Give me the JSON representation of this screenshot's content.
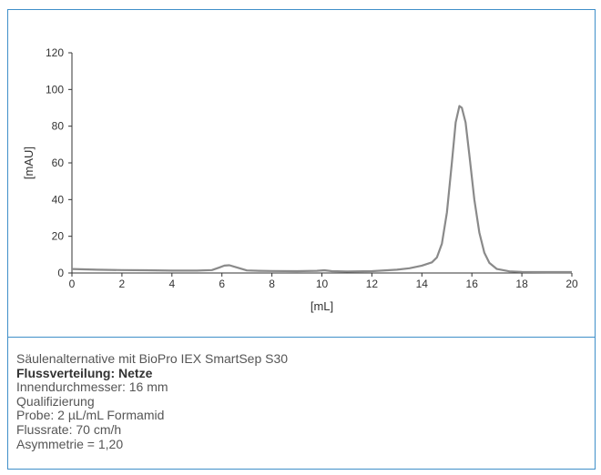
{
  "chart_data": {
    "type": "line",
    "title": "",
    "xlabel": "[mL]",
    "ylabel": "[mAU]",
    "xlim": [
      0,
      20
    ],
    "ylim": [
      0,
      120
    ],
    "x_ticks": [
      0,
      2,
      4,
      6,
      8,
      10,
      12,
      14,
      16,
      18,
      20
    ],
    "y_ticks": [
      0,
      20,
      40,
      60,
      80,
      100,
      120
    ],
    "grid": false,
    "series": [
      {
        "color": "#8a8a8a",
        "points": [
          [
            0,
            2.2
          ],
          [
            0.5,
            2.0
          ],
          [
            1,
            1.8
          ],
          [
            2,
            1.6
          ],
          [
            3,
            1.5
          ],
          [
            4,
            1.3
          ],
          [
            5,
            1.3
          ],
          [
            5.6,
            1.6
          ],
          [
            5.9,
            3.0
          ],
          [
            6.1,
            4.0
          ],
          [
            6.3,
            4.2
          ],
          [
            6.6,
            3.0
          ],
          [
            7.0,
            1.4
          ],
          [
            7.5,
            1.2
          ],
          [
            8,
            1.1
          ],
          [
            9,
            1.0
          ],
          [
            9.8,
            1.2
          ],
          [
            10.1,
            1.5
          ],
          [
            10.4,
            1.0
          ],
          [
            11,
            0.8
          ],
          [
            12,
            1.0
          ],
          [
            13,
            1.8
          ],
          [
            13.5,
            2.6
          ],
          [
            14,
            4.0
          ],
          [
            14.4,
            5.8
          ],
          [
            14.6,
            8.5
          ],
          [
            14.8,
            16
          ],
          [
            15.0,
            33
          ],
          [
            15.2,
            60
          ],
          [
            15.35,
            82
          ],
          [
            15.5,
            91
          ],
          [
            15.6,
            90
          ],
          [
            15.75,
            82
          ],
          [
            15.9,
            64
          ],
          [
            16.1,
            40
          ],
          [
            16.3,
            22
          ],
          [
            16.5,
            11
          ],
          [
            16.7,
            5.5
          ],
          [
            17.0,
            2.2
          ],
          [
            17.5,
            0.9
          ],
          [
            18,
            0.6
          ],
          [
            19,
            0.5
          ],
          [
            20,
            0.5
          ]
        ]
      }
    ]
  },
  "caption": {
    "line1": "Säulenalternative mit BioPro IEX SmartSep S30",
    "line2": "Flussverteilung: Netze",
    "line3": "Innendurchmesser: 16 mm",
    "line4": "Qualifizierung",
    "line5": "Probe: 2 µL/mL Formamid",
    "line6": "Flussrate: 70 cm/h",
    "line7": "Asymmetrie = 1,20"
  },
  "colors": {
    "frame": "#3f8fc9",
    "line": "#8a8a8a",
    "axis": "#333333"
  }
}
